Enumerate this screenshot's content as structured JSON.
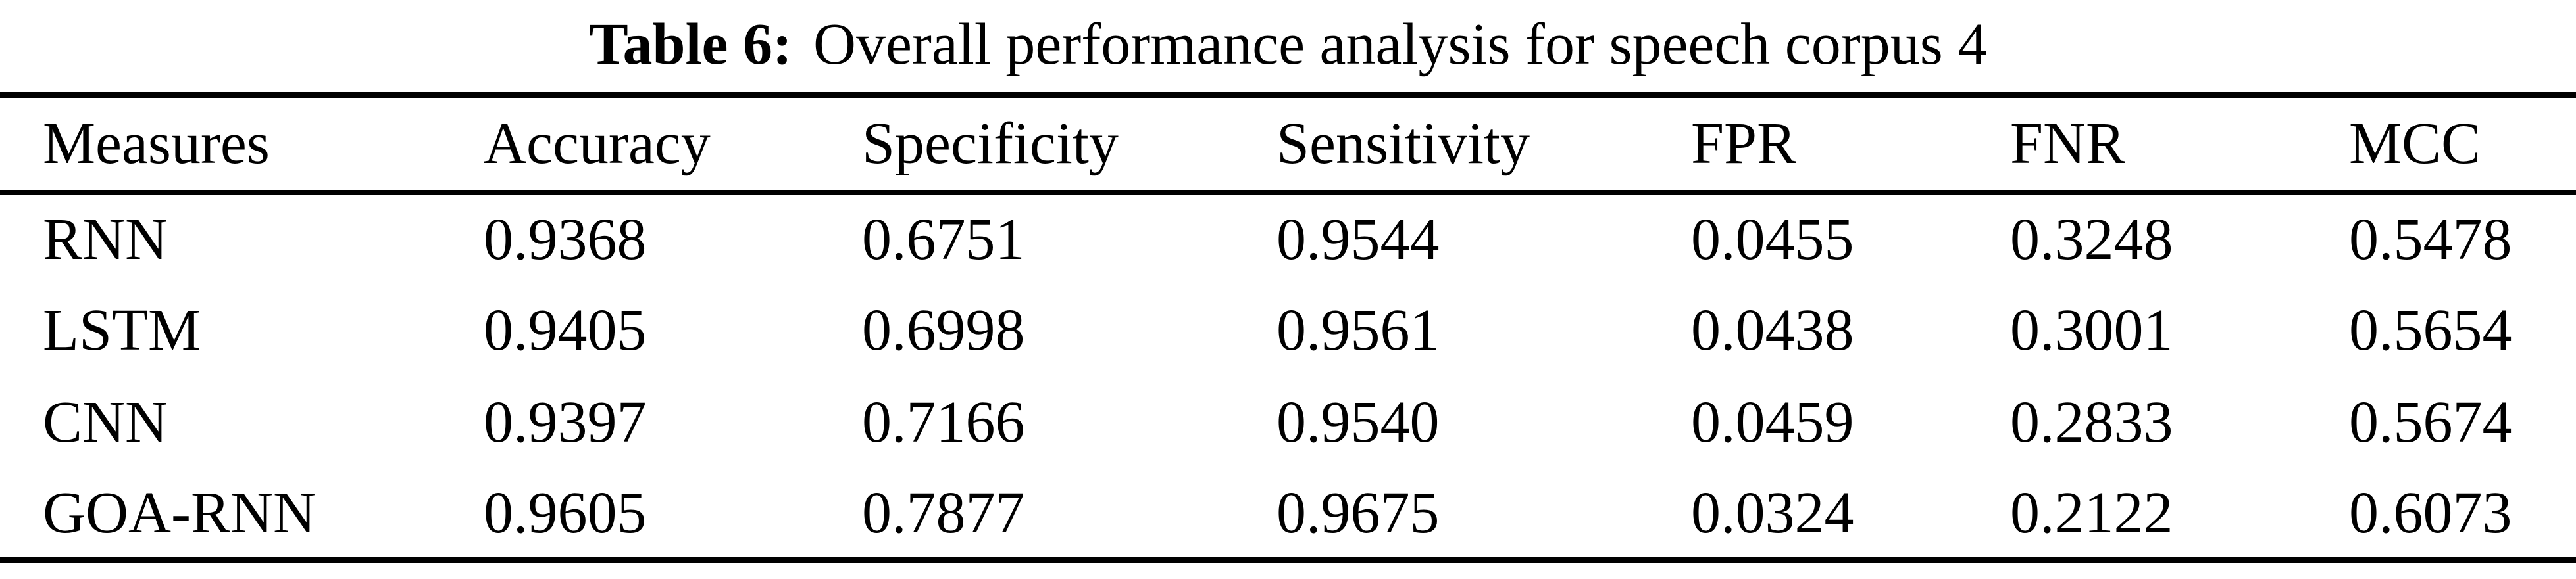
{
  "figure": {
    "caption": {
      "label": "Table 6:",
      "text": "Overall performance analysis for speech corpus 4"
    },
    "table": {
      "columns": [
        "Measures",
        "Accuracy",
        "Specificity",
        "Sensitivity",
        "FPR",
        "FNR",
        "MCC"
      ],
      "rows": [
        {
          "measure": "RNN",
          "values": [
            "0.9368",
            "0.6751",
            "0.9544",
            "0.0455",
            "0.3248",
            "0.5478"
          ]
        },
        {
          "measure": "LSTM",
          "values": [
            "0.9405",
            "0.6998",
            "0.9561",
            "0.0438",
            "0.3001",
            "0.5654"
          ]
        },
        {
          "measure": "CNN",
          "values": [
            "0.9397",
            "0.7166",
            "0.9540",
            "0.0459",
            "0.2833",
            "0.5674"
          ]
        },
        {
          "measure": "GOA-RNN",
          "values": [
            "0.9605",
            "0.7877",
            "0.9675",
            "0.0324",
            "0.2122",
            "0.6073"
          ]
        }
      ]
    },
    "colors": {
      "text": "#000000",
      "background": "#ffffff",
      "rule": "#000000"
    }
  },
  "chart_data": {
    "type": "table",
    "title": "Table 6: Overall performance analysis for speech corpus 4",
    "columns": [
      "Measures",
      "Accuracy",
      "Specificity",
      "Sensitivity",
      "FPR",
      "FNR",
      "MCC"
    ],
    "rows": [
      [
        "RNN",
        0.9368,
        0.6751,
        0.9544,
        0.0455,
        0.3248,
        0.5478
      ],
      [
        "LSTM",
        0.9405,
        0.6998,
        0.9561,
        0.0438,
        0.3001,
        0.5654
      ],
      [
        "CNN",
        0.9397,
        0.7166,
        0.954,
        0.0459,
        0.2833,
        0.5674
      ],
      [
        "GOA-RNN",
        0.9605,
        0.7877,
        0.9675,
        0.0324,
        0.2122,
        0.6073
      ]
    ]
  }
}
